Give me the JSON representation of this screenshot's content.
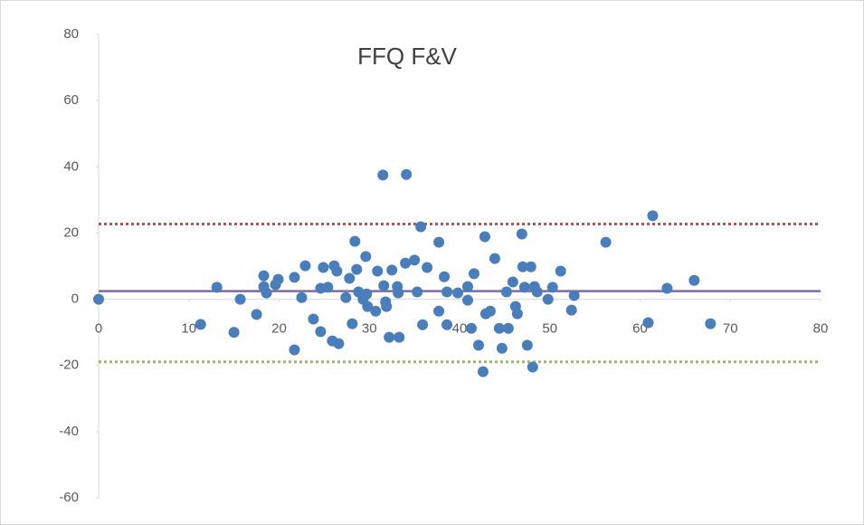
{
  "chart_data": {
    "type": "scatter",
    "title": "FFQ F&V",
    "color": "#4a7ebb",
    "x": [
      0,
      11.3,
      13.1,
      15.0,
      15.7,
      17.5,
      18.3,
      18.3,
      18.6,
      19.6,
      19.9,
      21.7,
      21.7,
      22.5,
      22.9,
      23.8,
      24.6,
      24.6,
      24.9,
      25.4,
      25.9,
      26.1,
      26.4,
      26.6,
      27.4,
      27.8,
      28.1,
      28.4,
      28.6,
      28.8,
      29.3,
      29.6,
      29.8,
      29.7,
      30.7,
      30.9,
      31.5,
      31.6,
      31.8,
      31.9,
      32.2,
      32.5,
      33.1,
      33.2,
      33.3,
      34.0,
      34.1,
      35.0,
      35.3,
      35.7,
      35.9,
      36.4,
      37.7,
      37.7,
      38.3,
      38.6,
      38.6,
      39.8,
      40.9,
      40.9,
      41.3,
      41.6,
      42.1,
      42.6,
      42.8,
      42.9,
      43.4,
      43.9,
      44.4,
      44.7,
      45.2,
      45.4,
      45.9,
      46.2,
      46.4,
      46.9,
      47.0,
      47.2,
      47.5,
      47.9,
      48.1,
      48.3,
      48.6,
      49.8,
      50.3,
      51.2,
      52.4,
      52.7,
      56.2,
      60.9,
      61.4,
      63.0,
      66.0,
      67.8
    ],
    "values": [
      0,
      -7.6,
      3.6,
      -10,
      0,
      -4.6,
      7.1,
      3.8,
      1.9,
      4.4,
      6,
      6.6,
      -15.3,
      0.5,
      10.1,
      -6,
      3.3,
      -9.8,
      9.6,
      3.6,
      -12.6,
      10.1,
      8.5,
      -13.4,
      0.5,
      6.3,
      -7.4,
      17.5,
      9,
      2.2,
      0,
      12.9,
      -2.2,
      1.6,
      -3.6,
      8.5,
      37.5,
      4.1,
      -0.8,
      -2.2,
      -11.5,
      8.8,
      3.8,
      1.9,
      -11.5,
      10.9,
      37.7,
      11.8,
      2.2,
      21.9,
      -7.7,
      9.6,
      17.2,
      -3.6,
      6.8,
      2.2,
      -7.7,
      1.9,
      3.8,
      -0.3,
      -8.8,
      7.7,
      -13.9,
      -21.9,
      18.9,
      -4.4,
      -3.6,
      12.3,
      -8.8,
      -14.8,
      2.2,
      -8.8,
      5.2,
      -2.2,
      -4.4,
      19.7,
      9.8,
      3.6,
      -13.9,
      9.8,
      -20.5,
      3.8,
      2.2,
      0,
      3.6,
      8.5,
      -3.3,
      1.1,
      17.2,
      -7.1,
      25.2,
      3.3,
      5.7,
      -7.4
    ],
    "reference_lines": [
      {
        "value": 22.7,
        "color": "#c0504d",
        "style": "dotted"
      },
      {
        "value": 2.46,
        "color": "#7f6aa8",
        "style": "solid"
      },
      {
        "value": -18.9,
        "color": "#9bbb59",
        "style": "dotted"
      }
    ],
    "xlim": [
      0,
      80
    ],
    "xticks": [
      0,
      10,
      20,
      30,
      40,
      50,
      60,
      70,
      80
    ],
    "ylim": [
      -60,
      80
    ],
    "yticks": [
      -60,
      -40,
      -20,
      0,
      20,
      40,
      60,
      80
    ]
  }
}
